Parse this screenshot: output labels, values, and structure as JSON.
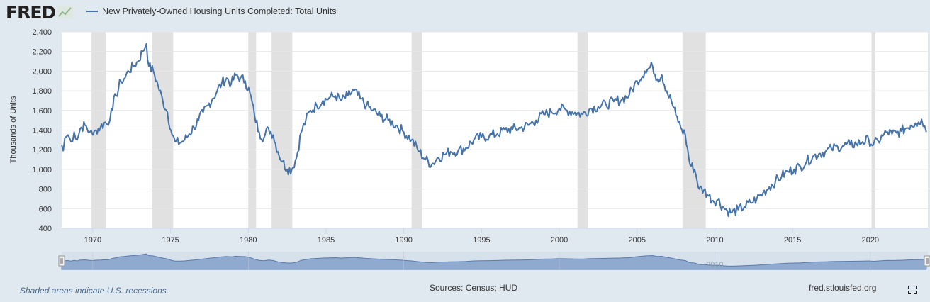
{
  "header": {
    "logo_text": "FRED",
    "legend_label": "New Privately-Owned Housing Units Completed: Total Units"
  },
  "footer": {
    "recession_note": "Shaded areas indicate U.S. recessions.",
    "sources": "Sources: Census; HUD",
    "site": "fred.stlouisfed.org"
  },
  "colors": {
    "series": "#4572a7",
    "recession": "#e1e1e1",
    "background": "#e1e9f0",
    "navigator_fill": "#8fa9cf",
    "navigator_bg": "#d7e1ec"
  },
  "chart_data": {
    "type": "line",
    "title": "",
    "xlabel": "",
    "ylabel": "Thousands of Units",
    "xlim": [
      1968.0,
      2023.7
    ],
    "ylim": [
      400,
      2400
    ],
    "yticks": [
      400,
      600,
      800,
      1000,
      1200,
      1400,
      1600,
      1800,
      2000,
      2200,
      2400
    ],
    "ytick_labels": [
      "400",
      "600",
      "800",
      "1,000",
      "1,200",
      "1,400",
      "1,600",
      "1,800",
      "2,000",
      "2,200",
      "2,400"
    ],
    "xticks": [
      1970,
      1975,
      1980,
      1985,
      1990,
      1995,
      2000,
      2005,
      2010,
      2015,
      2020
    ],
    "xtick_labels": [
      "1970",
      "1975",
      "1980",
      "1985",
      "1990",
      "1995",
      "2000",
      "2005",
      "2010",
      "2015",
      "2020"
    ],
    "grid": "horizontal",
    "legend": "top-left",
    "recessions": [
      [
        1969.92,
        1970.83
      ],
      [
        1973.83,
        1975.17
      ],
      [
        1980.0,
        1980.5
      ],
      [
        1981.5,
        1982.83
      ],
      [
        1990.5,
        1991.17
      ],
      [
        2001.17,
        2001.83
      ],
      [
        2007.92,
        2009.42
      ],
      [
        2020.08,
        2020.33
      ]
    ],
    "series": [
      {
        "x": [
          1968.0,
          1968.1,
          1968.2,
          1968.4,
          1968.6,
          1968.8,
          1969.0,
          1969.2,
          1969.5,
          1969.8,
          1970.0,
          1970.2,
          1970.5,
          1970.8,
          1971.0,
          1971.2,
          1971.5,
          1971.8,
          1972.0,
          1972.3,
          1972.6,
          1972.9,
          1973.2,
          1973.45,
          1973.6,
          1973.9,
          1974.2,
          1974.5,
          1974.8,
          1975.1,
          1975.3,
          1975.6,
          1975.9,
          1976.2,
          1976.5,
          1976.8,
          1977.1,
          1977.4,
          1977.7,
          1978.0,
          1978.3,
          1978.6,
          1978.9,
          1979.2,
          1979.5,
          1979.8,
          1980.1,
          1980.4,
          1980.7,
          1981.0,
          1981.3,
          1981.6,
          1981.9,
          1982.2,
          1982.5,
          1982.8,
          1983.1,
          1983.4,
          1983.7,
          1984.0,
          1984.4,
          1984.8,
          1985.2,
          1985.6,
          1986.0,
          1986.4,
          1986.8,
          1987.2,
          1987.6,
          1988.0,
          1988.5,
          1989.0,
          1989.5,
          1990.0,
          1990.5,
          1991.0,
          1991.4,
          1991.8,
          1992.2,
          1992.6,
          1993.0,
          1993.5,
          1994.0,
          1994.5,
          1995.0,
          1995.5,
          1996.0,
          1996.5,
          1997.0,
          1997.5,
          1998.0,
          1998.5,
          1999.0,
          1999.5,
          2000.0,
          2000.5,
          2001.0,
          2001.5,
          2002.0,
          2002.5,
          2003.0,
          2003.5,
          2004.0,
          2004.5,
          2005.0,
          2005.5,
          2006.0,
          2006.3,
          2006.6,
          2006.9,
          2007.2,
          2007.5,
          2007.8,
          2008.1,
          2008.4,
          2008.7,
          2009.0,
          2009.3,
          2009.6,
          2009.9,
          2010.2,
          2010.5,
          2010.8,
          2011.1,
          2011.5,
          2011.9,
          2012.3,
          2012.7,
          2013.1,
          2013.5,
          2013.9,
          2014.3,
          2014.7,
          2015.1,
          2015.5,
          2015.9,
          2016.3,
          2016.7,
          2017.1,
          2017.5,
          2017.9,
          2018.3,
          2018.7,
          2019.1,
          2019.5,
          2019.9,
          2020.2,
          2020.5,
          2020.8,
          2021.1,
          2021.4,
          2021.7,
          2022.0,
          2022.3,
          2022.6,
          2022.9,
          2023.1,
          2023.3,
          2023.5,
          2023.6
        ],
        "values": [
          1250,
          1190,
          1320,
          1350,
          1280,
          1380,
          1300,
          1420,
          1450,
          1380,
          1350,
          1400,
          1430,
          1480,
          1450,
          1620,
          1750,
          1900,
          1920,
          2000,
          2050,
          2100,
          2200,
          2280,
          2050,
          2000,
          1850,
          1700,
          1580,
          1350,
          1280,
          1270,
          1300,
          1360,
          1430,
          1500,
          1580,
          1650,
          1720,
          1800,
          1880,
          1930,
          1870,
          1960,
          1930,
          1900,
          1780,
          1550,
          1380,
          1320,
          1420,
          1350,
          1180,
          1080,
          1000,
          1000,
          1120,
          1380,
          1500,
          1600,
          1650,
          1700,
          1730,
          1750,
          1700,
          1750,
          1800,
          1720,
          1650,
          1600,
          1540,
          1500,
          1450,
          1380,
          1300,
          1180,
          1100,
          1050,
          1120,
          1150,
          1180,
          1190,
          1220,
          1300,
          1330,
          1340,
          1360,
          1400,
          1410,
          1420,
          1450,
          1500,
          1560,
          1580,
          1620,
          1600,
          1580,
          1560,
          1620,
          1640,
          1660,
          1690,
          1710,
          1760,
          1900,
          2000,
          2050,
          1920,
          1960,
          1800,
          1700,
          1550,
          1430,
          1350,
          1050,
          1000,
          800,
          790,
          730,
          680,
          690,
          620,
          580,
          560,
          590,
          620,
          660,
          700,
          760,
          820,
          880,
          930,
          980,
          1000,
          1030,
          1080,
          1130,
          1160,
          1180,
          1210,
          1230,
          1240,
          1250,
          1260,
          1280,
          1300,
          1250,
          1290,
          1340,
          1380,
          1360,
          1370,
          1390,
          1420,
          1450,
          1470,
          1480,
          1510,
          1440,
          1380
        ]
      }
    ]
  }
}
